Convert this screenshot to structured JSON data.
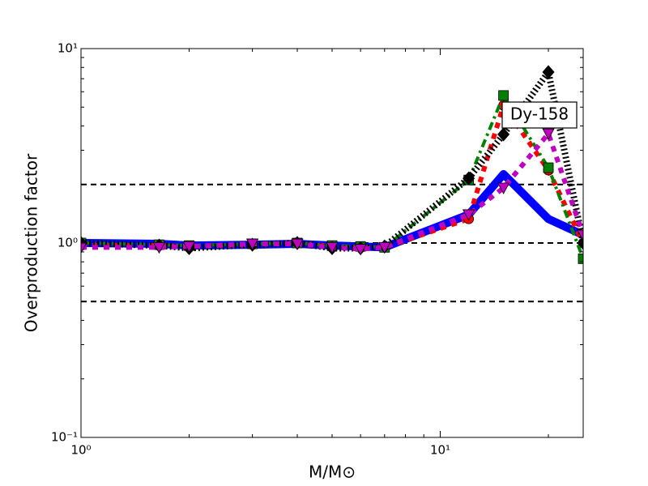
{
  "chart_data": {
    "type": "line",
    "xlabel": "M/M⊙",
    "ylabel": "Overproduction factor",
    "annotation": "Dy-158",
    "log_x": true,
    "log_y": true,
    "xlim": [
      1,
      25
    ],
    "ylim": [
      0.1,
      10
    ],
    "xticks": [
      {
        "value": 1,
        "label": "10⁰"
      },
      {
        "value": 10,
        "label": "10¹"
      }
    ],
    "yticks": [
      {
        "value": 0.1,
        "label": "10⁻¹"
      },
      {
        "value": 1,
        "label": "10⁰"
      },
      {
        "value": 10,
        "label": "10¹"
      }
    ],
    "xminorticks": [
      2,
      3,
      4,
      5,
      6,
      7,
      8,
      9,
      20
    ],
    "yminorticks": [
      0.2,
      0.3,
      0.4,
      0.5,
      0.6,
      0.7,
      0.8,
      0.9,
      2,
      3,
      4,
      5,
      6,
      7,
      8,
      9
    ],
    "hlines": [
      0.5,
      1,
      2
    ],
    "x": [
      1,
      1.65,
      2,
      3,
      4,
      5,
      6,
      7,
      12,
      15,
      20,
      25
    ],
    "series": [
      {
        "color": "#0000ff",
        "linestyle": "solid",
        "marker": "none",
        "values": [
          1.0,
          0.99,
          0.97,
          0.98,
          0.99,
          0.97,
          0.96,
          0.95,
          1.4,
          2.26,
          1.33,
          1.1
        ]
      },
      {
        "color": "#ff0000",
        "linestyle": "dotted",
        "marker": "circle",
        "values": [
          0.97,
          0.97,
          0.96,
          0.98,
          1.0,
          0.96,
          0.95,
          0.95,
          1.33,
          5.1,
          2.37,
          1.0
        ]
      },
      {
        "color": "#008000",
        "linestyle": "dashdot",
        "marker": "square",
        "values": [
          1.0,
          0.98,
          0.97,
          0.99,
          1.0,
          0.97,
          0.96,
          0.95,
          2.11,
          5.74,
          2.44,
          0.83
        ]
      },
      {
        "color": "#000000",
        "linestyle": "hatched",
        "marker": "diamond",
        "values": [
          1.0,
          0.97,
          0.94,
          0.98,
          1.0,
          0.94,
          0.94,
          0.96,
          2.15,
          3.62,
          7.57,
          1.0
        ]
      },
      {
        "color": "#bf00bf",
        "linestyle": "dotted",
        "marker": "triangle-down",
        "values": [
          0.95,
          0.95,
          0.96,
          0.99,
          0.99,
          0.95,
          0.93,
          0.95,
          1.4,
          1.92,
          3.65,
          1.1
        ]
      }
    ]
  }
}
